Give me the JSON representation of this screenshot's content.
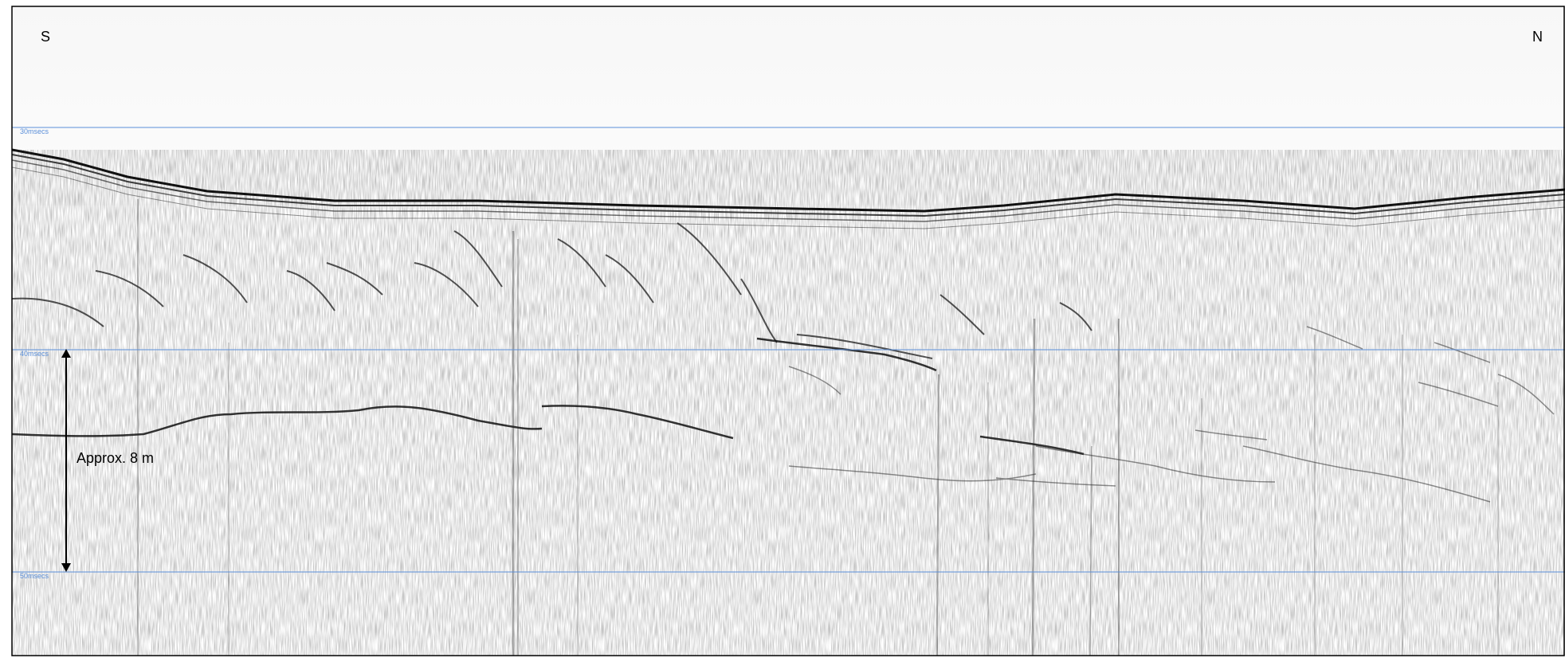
{
  "profile": {
    "direction_left": "S",
    "direction_right": "N",
    "time_lines": [
      {
        "label": "30msecs"
      },
      {
        "label": "40msecs"
      },
      {
        "label": "50msecs"
      }
    ],
    "scale_label": "Approx. 8 m",
    "colors": {
      "time_line": "#5b8fd9",
      "frame": "#000000",
      "reflector": "#111111",
      "background": "#ffffff"
    }
  }
}
